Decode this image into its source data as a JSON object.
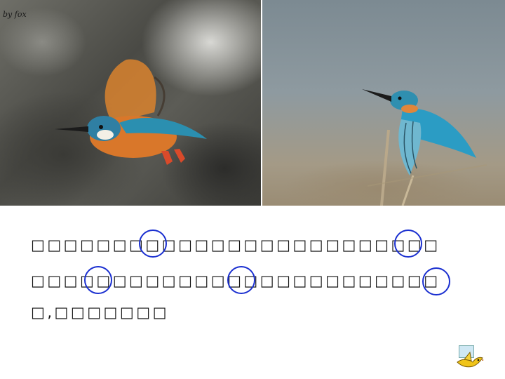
{
  "watermark": "by fox",
  "text_lines": [
    {
      "prefix": "□□□□□□□□□□□□□□□□",
      "bold": "□□□□",
      "suffix": "□□□□□"
    },
    {
      "prefix": "□□□□□□□□□□□□□□□□□□□□□□□□□",
      "bold": "",
      "suffix": ""
    },
    {
      "prefix": "□,□□□□□□□",
      "bold": "",
      "suffix": ""
    }
  ],
  "colors": {
    "marker_circle": "#1a2fd0",
    "kingfisher_blue": "#2b8fb0",
    "kingfisher_orange": "#d9772a"
  },
  "icons": {
    "nav": "bird-nav-icon"
  }
}
